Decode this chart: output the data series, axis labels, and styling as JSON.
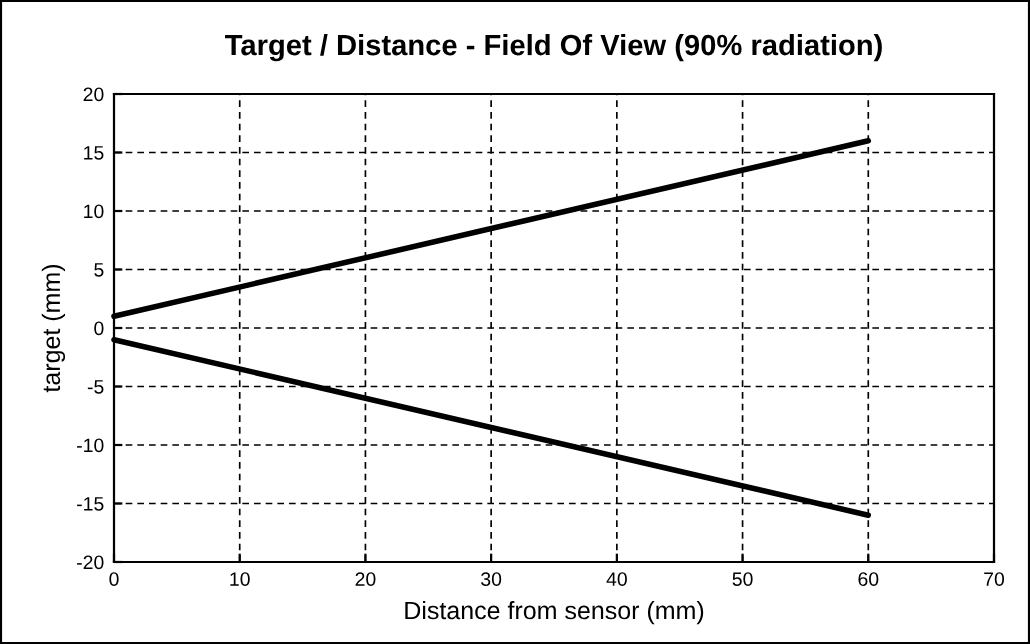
{
  "chart_data": {
    "type": "line",
    "title": "Target / Distance - Field Of View (90% radiation)",
    "xlabel": "Distance from sensor (mm)",
    "ylabel": "target (mm)",
    "x": [
      0,
      60
    ],
    "series": [
      {
        "color": "#000000",
        "values": [
          1,
          16
        ]
      },
      {
        "color": "#000000",
        "values": [
          -1,
          -16
        ]
      }
    ],
    "xlim": [
      0,
      70
    ],
    "xticks": [
      0,
      10,
      20,
      30,
      40,
      50,
      60,
      70
    ],
    "ylim": [
      -20,
      20
    ],
    "yticks": [
      -20,
      -15,
      -10,
      -5,
      0,
      5,
      10,
      15,
      20
    ],
    "grid": true,
    "line_style": "solid"
  }
}
